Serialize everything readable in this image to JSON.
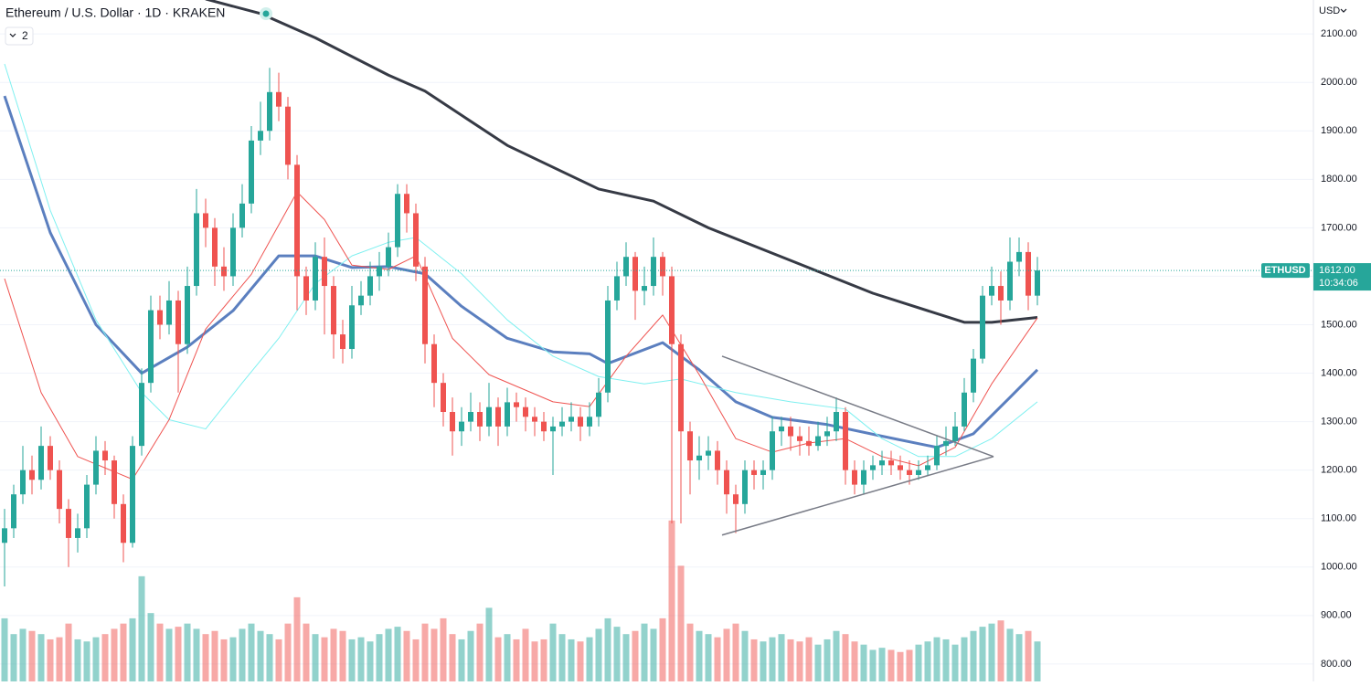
{
  "chart_data": {
    "type": "candlestick",
    "title": "Ethereum / U.S. Dollar · 1D · KRAKEN",
    "indicator_count": "2",
    "currency": "USD",
    "ylim": [
      764,
      2170
    ],
    "yticks": [
      {
        "value": 800,
        "label": "800.00"
      },
      {
        "value": 900,
        "label": "900.00"
      },
      {
        "value": 1000,
        "label": "1000.00"
      },
      {
        "value": 1100,
        "label": "1100.00"
      },
      {
        "value": 1200,
        "label": "1200.00"
      },
      {
        "value": 1300,
        "label": "1300.00"
      },
      {
        "value": 1400,
        "label": "1400.00"
      },
      {
        "value": 1500,
        "label": "1500.00"
      },
      {
        "value": 1600,
        "label": "1600.00"
      },
      {
        "value": 1700,
        "label": "1700.00"
      },
      {
        "value": 1800,
        "label": "1800.00"
      },
      {
        "value": 1900,
        "label": "1900.00"
      },
      {
        "value": 2000,
        "label": "2000.00"
      },
      {
        "value": 2100,
        "label": "2100.00"
      }
    ],
    "grid": true,
    "up_color": "#26a69a",
    "down_color": "#ef5350",
    "last_price": {
      "symbol": "ETHUSD",
      "price": {
        "value": 1612,
        "label": "1612.00"
      },
      "countdown": "10:34:06",
      "color": "#26a69a"
    },
    "open": [
      1050,
      1080,
      1150,
      1200,
      1180,
      1250,
      1200,
      1120,
      1060,
      1080,
      1170,
      1240,
      1220,
      1130,
      1050,
      1250,
      1380,
      1530,
      1500,
      1550,
      1460,
      1580,
      1730,
      1700,
      1620,
      1600,
      1700,
      1750,
      1880,
      1900,
      1980,
      1950,
      1830,
      1600,
      1550,
      1640,
      1580,
      1480,
      1450,
      1540,
      1560,
      1600,
      1620,
      1660,
      1770,
      1730,
      1620,
      1460,
      1380,
      1320,
      1280,
      1300,
      1320,
      1290,
      1330,
      1290,
      1340,
      1330,
      1310,
      1300,
      1280,
      1290,
      1300,
      1310,
      1290,
      1310,
      1360,
      1550,
      1600,
      1640,
      1570,
      1580,
      1640,
      1600,
      1460,
      1280,
      1220,
      1230,
      1240,
      1200,
      1150,
      1130,
      1200,
      1190,
      1200,
      1280,
      1290,
      1270,
      1260,
      1250,
      1270,
      1280,
      1320,
      1200,
      1170,
      1200,
      1210,
      1220,
      1210,
      1200,
      1190,
      1200,
      1210,
      1250,
      1260,
      1290,
      1360,
      1430,
      1560,
      1580,
      1550,
      1630,
      1650,
      1560
    ],
    "high": [
      1120,
      1170,
      1250,
      1230,
      1290,
      1270,
      1220,
      1140,
      1110,
      1190,
      1270,
      1260,
      1230,
      1150,
      1270,
      1410,
      1560,
      1560,
      1590,
      1570,
      1620,
      1780,
      1760,
      1720,
      1660,
      1730,
      1790,
      1910,
      1960,
      2030,
      2020,
      1970,
      1850,
      1620,
      1670,
      1680,
      1600,
      1510,
      1580,
      1590,
      1630,
      1650,
      1690,
      1790,
      1790,
      1750,
      1640,
      1480,
      1400,
      1350,
      1330,
      1360,
      1340,
      1380,
      1350,
      1370,
      1360,
      1350,
      1330,
      1320,
      1310,
      1330,
      1340,
      1330,
      1340,
      1390,
      1580,
      1630,
      1670,
      1650,
      1620,
      1680,
      1650,
      1620,
      1480,
      1300,
      1270,
      1270,
      1260,
      1220,
      1170,
      1220,
      1220,
      1220,
      1310,
      1310,
      1310,
      1290,
      1290,
      1300,
      1310,
      1350,
      1330,
      1220,
      1220,
      1230,
      1240,
      1240,
      1230,
      1220,
      1220,
      1230,
      1270,
      1290,
      1320,
      1390,
      1450,
      1580,
      1620,
      1610,
      1680,
      1680,
      1670,
      1640
    ],
    "low": [
      960,
      1060,
      1130,
      1150,
      1160,
      1180,
      1090,
      1000,
      1030,
      1060,
      1150,
      1190,
      1100,
      1010,
      1040,
      1230,
      1360,
      1470,
      1480,
      1360,
      1440,
      1560,
      1660,
      1580,
      1570,
      1580,
      1680,
      1730,
      1850,
      1880,
      1920,
      1800,
      1530,
      1520,
      1530,
      1480,
      1430,
      1420,
      1430,
      1520,
      1540,
      1570,
      1600,
      1640,
      1690,
      1590,
      1420,
      1330,
      1290,
      1230,
      1250,
      1280,
      1260,
      1270,
      1250,
      1270,
      1300,
      1280,
      1270,
      1260,
      1190,
      1270,
      1280,
      1260,
      1270,
      1290,
      1340,
      1530,
      1580,
      1510,
      1540,
      1560,
      1560,
      1090,
      1090,
      1150,
      1180,
      1200,
      1170,
      1110,
      1070,
      1110,
      1160,
      1160,
      1180,
      1250,
      1240,
      1230,
      1230,
      1240,
      1250,
      1260,
      1170,
      1150,
      1150,
      1180,
      1190,
      1190,
      1180,
      1170,
      1180,
      1190,
      1200,
      1230,
      1250,
      1280,
      1340,
      1420,
      1540,
      1500,
      1530,
      1600,
      1530,
      1540
    ],
    "close": [
      1080,
      1150,
      1200,
      1180,
      1250,
      1200,
      1120,
      1060,
      1080,
      1170,
      1240,
      1220,
      1130,
      1050,
      1250,
      1380,
      1530,
      1500,
      1550,
      1460,
      1580,
      1730,
      1700,
      1620,
      1600,
      1700,
      1750,
      1880,
      1900,
      1980,
      1950,
      1830,
      1600,
      1550,
      1640,
      1580,
      1480,
      1450,
      1540,
      1560,
      1600,
      1620,
      1660,
      1770,
      1730,
      1620,
      1460,
      1380,
      1320,
      1280,
      1300,
      1320,
      1290,
      1330,
      1290,
      1340,
      1330,
      1310,
      1300,
      1280,
      1290,
      1300,
      1310,
      1290,
      1310,
      1360,
      1550,
      1600,
      1640,
      1570,
      1580,
      1640,
      1600,
      1460,
      1280,
      1220,
      1230,
      1240,
      1200,
      1150,
      1130,
      1200,
      1190,
      1200,
      1280,
      1290,
      1270,
      1260,
      1250,
      1270,
      1280,
      1320,
      1200,
      1170,
      1200,
      1210,
      1220,
      1210,
      1200,
      1190,
      1200,
      1210,
      1250,
      1260,
      1290,
      1360,
      1430,
      1560,
      1580,
      1550,
      1630,
      1650,
      1560,
      1612
    ],
    "vlim": [
      0,
      165
    ],
    "volume": [
      60,
      45,
      50,
      48,
      45,
      40,
      42,
      55,
      40,
      38,
      42,
      45,
      50,
      55,
      60,
      100,
      65,
      55,
      50,
      52,
      55,
      50,
      45,
      48,
      40,
      42,
      50,
      55,
      48,
      45,
      40,
      55,
      80,
      55,
      45,
      42,
      50,
      48,
      40,
      42,
      38,
      45,
      50,
      52,
      48,
      40,
      55,
      50,
      60,
      45,
      40,
      48,
      55,
      70,
      42,
      45,
      40,
      50,
      38,
      40,
      55,
      45,
      40,
      38,
      42,
      50,
      60,
      52,
      45,
      48,
      55,
      50,
      60,
      153,
      110,
      55,
      48,
      45,
      42,
      50,
      55,
      48,
      40,
      38,
      42,
      45,
      40,
      38,
      42,
      35,
      40,
      48,
      45,
      38,
      35,
      30,
      32,
      30,
      28,
      30,
      35,
      38,
      42,
      40,
      35,
      42,
      48,
      52,
      55,
      58,
      50,
      45,
      48,
      38
    ],
    "moving_averages": [
      {
        "color": "#363a45",
        "width": 3,
        "x": [
          22,
          28,
          34,
          42,
          46,
          55,
          65,
          71,
          77,
          87,
          95,
          105,
          108,
          113
        ],
        "values": [
          2172,
          2142,
          2092,
          2015,
          1982,
          1870,
          1780,
          1755,
          1700,
          1625,
          1565,
          1505,
          1505,
          1515
        ]
      },
      {
        "color": "#5b7fbf",
        "width": 3,
        "x": [
          0,
          5,
          10,
          15,
          20,
          25,
          30,
          34,
          38,
          42,
          46,
          50,
          55,
          60,
          64,
          66,
          72,
          76,
          80,
          84,
          90,
          96,
          102,
          106,
          110,
          113
        ],
        "values": [
          1972,
          1690,
          1500,
          1400,
          1454,
          1529,
          1642,
          1642,
          1618,
          1620,
          1605,
          1538,
          1472,
          1444,
          1440,
          1420,
          1463,
          1407,
          1341,
          1309,
          1294,
          1270,
          1247,
          1275,
          1350,
          1407
        ]
      },
      {
        "color": "#7ff0f0",
        "width": 1,
        "x": [
          0,
          5,
          10,
          15,
          18,
          22,
          26,
          30,
          34,
          38,
          42,
          45,
          50,
          55,
          60,
          65,
          70,
          74,
          80,
          86,
          92,
          96,
          100,
          104,
          108,
          113
        ],
        "values": [
          2038,
          1736,
          1510,
          1360,
          1304,
          1285,
          1380,
          1472,
          1585,
          1642,
          1670,
          1680,
          1605,
          1510,
          1435,
          1393,
          1378,
          1388,
          1360,
          1341,
          1326,
          1265,
          1228,
          1228,
          1265,
          1341
        ]
      },
      {
        "color": "#ef5350",
        "width": 1,
        "x": [
          0,
          4,
          8,
          14,
          18,
          22,
          27,
          32,
          35,
          38,
          42,
          45,
          49,
          53,
          60,
          64,
          68,
          72,
          76,
          80,
          84,
          88,
          92,
          96,
          100,
          104,
          108,
          113
        ],
        "values": [
          1595,
          1360,
          1228,
          1181,
          1304,
          1491,
          1604,
          1774,
          1717,
          1623,
          1614,
          1642,
          1472,
          1397,
          1341,
          1331,
          1435,
          1520,
          1397,
          1265,
          1237,
          1256,
          1265,
          1228,
          1209,
          1247,
          1378,
          1514
        ]
      }
    ],
    "trendlines": [
      {
        "color": "#787b86",
        "x": [
          78.5,
          108.2
        ],
        "values": [
          1435,
          1228
        ]
      },
      {
        "color": "#787b86",
        "x": [
          78.5,
          108.2
        ],
        "values": [
          1066,
          1228
        ]
      }
    ]
  }
}
